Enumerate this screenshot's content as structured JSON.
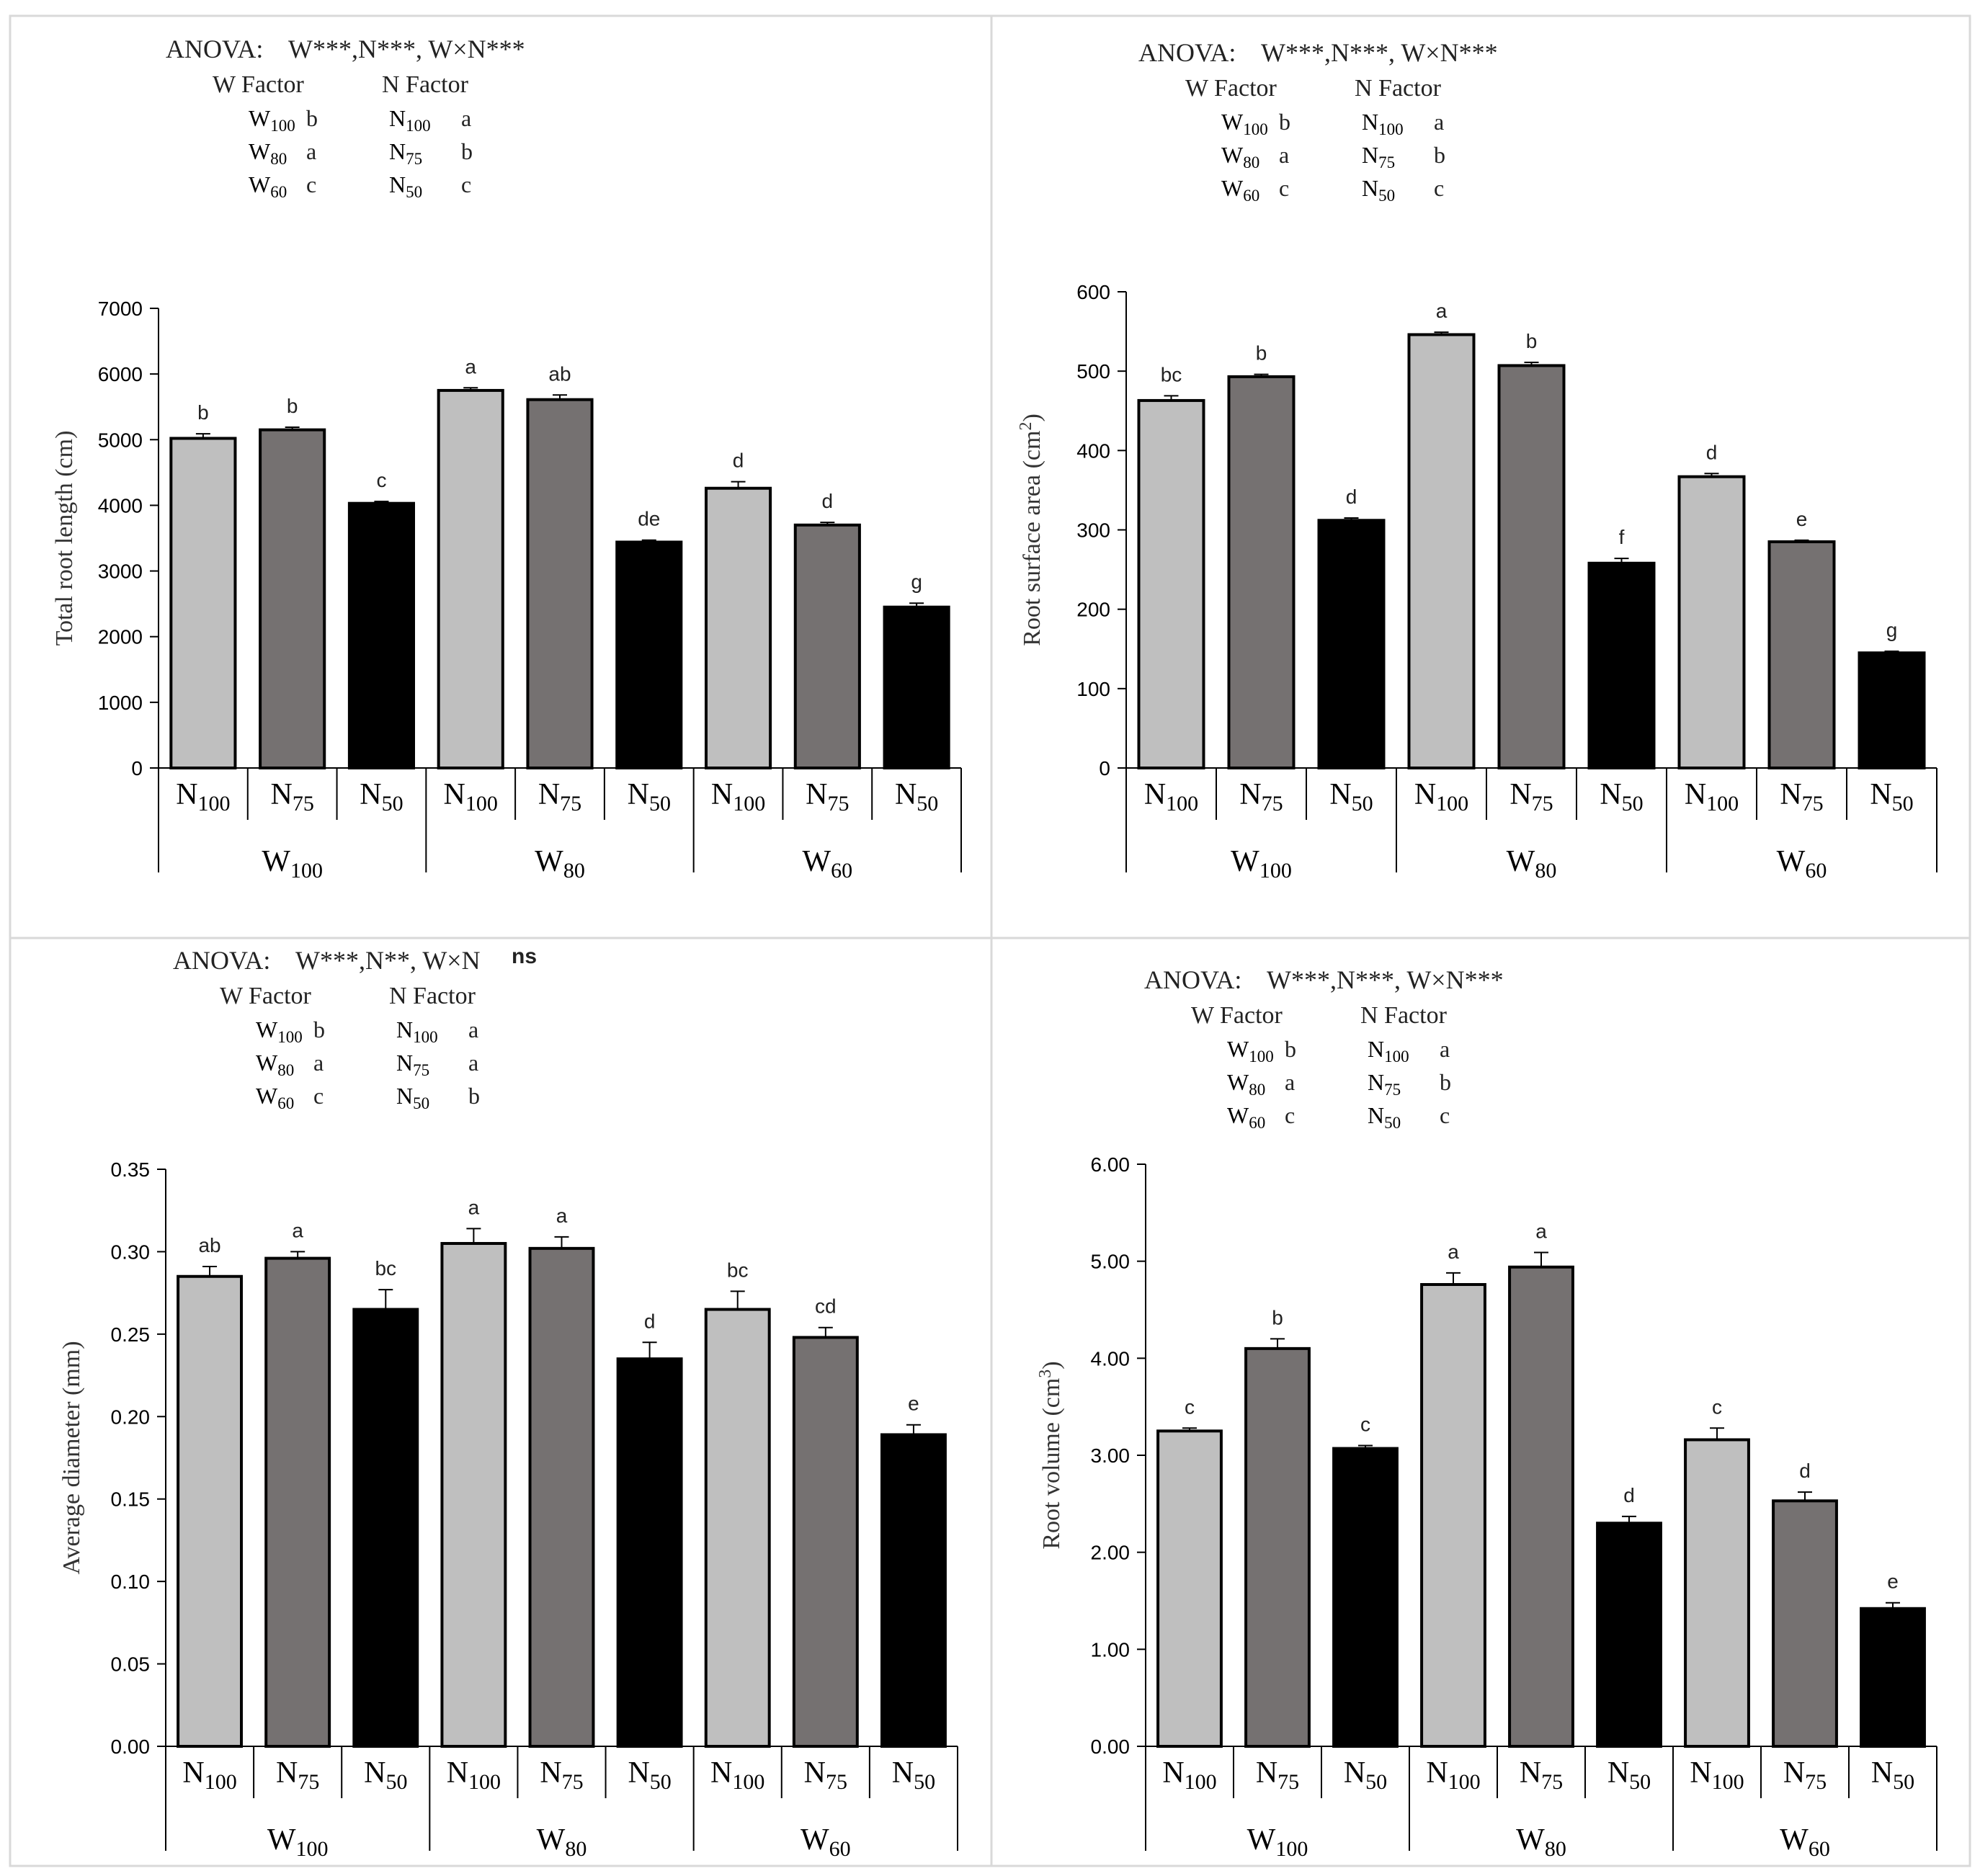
{
  "figure": {
    "panels": [
      "Total root length",
      "Root surface area",
      "Average diameter",
      "Root volume"
    ]
  },
  "colors": {
    "N100": "#bfbfbf",
    "N75": "#757171",
    "N50": "#000000",
    "frame": "#d9d9d9",
    "axis": "#000000"
  },
  "chart_data": [
    {
      "type": "bar",
      "title": "",
      "ylabel": "Total root length (cm)",
      "ylim": [
        0,
        7000
      ],
      "yticks": [
        "0",
        "1000",
        "2000",
        "3000",
        "4000",
        "5000",
        "6000",
        "7000"
      ],
      "n_levels": [
        "N100",
        "N75",
        "N50"
      ],
      "w_levels": [
        "W100",
        "W80",
        "W60"
      ],
      "values": [
        5020,
        5150,
        4030,
        5750,
        5610,
        3440,
        4260,
        3700,
        2450
      ],
      "errors": [
        70,
        40,
        30,
        40,
        70,
        30,
        100,
        40,
        60
      ],
      "letters": [
        "b",
        "b",
        "c",
        "a",
        "ab",
        "de",
        "d",
        "d",
        "g"
      ],
      "anova": {
        "title": "ANOVA:",
        "effects": "W***,N***, W×N***",
        "sup": ""
      },
      "factor_headers": [
        "W Factor",
        "N Factor"
      ],
      "w_factor": [
        {
          "level": "W100",
          "letter": "b"
        },
        {
          "level": "W80",
          "letter": "a"
        },
        {
          "level": "W60",
          "letter": "c"
        }
      ],
      "n_factor": [
        {
          "level": "N100",
          "letter": "a"
        },
        {
          "level": "N75",
          "letter": "b"
        },
        {
          "level": "N50",
          "letter": "c"
        }
      ]
    },
    {
      "type": "bar",
      "title": "",
      "ylabel": "Root surface area (cm2)",
      "ylim": [
        0,
        600
      ],
      "yticks": [
        "0",
        "100",
        "200",
        "300",
        "400",
        "500",
        "600"
      ],
      "n_levels": [
        "N100",
        "N75",
        "N50"
      ],
      "w_levels": [
        "W100",
        "W80",
        "W60"
      ],
      "values": [
        463,
        493,
        312,
        546,
        507,
        258,
        367,
        285,
        145
      ],
      "errors": [
        6,
        3,
        3,
        3,
        4,
        6,
        4,
        2,
        2
      ],
      "letters": [
        "bc",
        "b",
        "d",
        "a",
        "b",
        "f",
        "d",
        "e",
        "g"
      ],
      "anova": {
        "title": "ANOVA:",
        "effects": "W***,N***, W×N***",
        "sup": ""
      },
      "factor_headers": [
        "W Factor",
        "N Factor"
      ],
      "w_factor": [
        {
          "level": "W100",
          "letter": "b"
        },
        {
          "level": "W80",
          "letter": "a"
        },
        {
          "level": "W60",
          "letter": "c"
        }
      ],
      "n_factor": [
        {
          "level": "N100",
          "letter": "a"
        },
        {
          "level": "N75",
          "letter": "b"
        },
        {
          "level": "N50",
          "letter": "c"
        }
      ]
    },
    {
      "type": "bar",
      "title": "",
      "ylabel": "Average diameter (mm)",
      "ylim": [
        0,
        0.35
      ],
      "yticks": [
        "0.00",
        "0.05",
        "0.10",
        "0.15",
        "0.20",
        "0.25",
        "0.30",
        "0.35"
      ],
      "n_levels": [
        "N100",
        "N75",
        "N50"
      ],
      "w_levels": [
        "W100",
        "W80",
        "W60"
      ],
      "values": [
        0.285,
        0.296,
        0.265,
        0.305,
        0.302,
        0.235,
        0.265,
        0.248,
        0.189
      ],
      "errors": [
        0.006,
        0.004,
        0.012,
        0.009,
        0.007,
        0.01,
        0.011,
        0.006,
        0.006
      ],
      "letters": [
        "ab",
        "a",
        "bc",
        "a",
        "a",
        "d",
        "bc",
        "cd",
        "e"
      ],
      "anova": {
        "title": "ANOVA:",
        "effects": "W***,N**, W×N",
        "sup": "ns"
      },
      "factor_headers": [
        "W Factor",
        "N Factor"
      ],
      "w_factor": [
        {
          "level": "W100",
          "letter": "b"
        },
        {
          "level": "W80",
          "letter": "a"
        },
        {
          "level": "W60",
          "letter": "c"
        }
      ],
      "n_factor": [
        {
          "level": "N100",
          "letter": "a"
        },
        {
          "level": "N75",
          "letter": "a"
        },
        {
          "level": "N50",
          "letter": "b"
        }
      ]
    },
    {
      "type": "bar",
      "title": "",
      "ylabel": "Root volume (cm3)",
      "ylim": [
        0,
        6
      ],
      "yticks": [
        "0.00",
        "1.00",
        "2.00",
        "3.00",
        "4.00",
        "5.00",
        "6.00"
      ],
      "n_levels": [
        "N100",
        "N75",
        "N50"
      ],
      "w_levels": [
        "W100",
        "W80",
        "W60"
      ],
      "values": [
        3.25,
        4.1,
        3.07,
        4.76,
        4.94,
        2.3,
        3.16,
        2.53,
        1.42
      ],
      "errors": [
        0.03,
        0.1,
        0.03,
        0.12,
        0.15,
        0.07,
        0.12,
        0.09,
        0.06
      ],
      "letters": [
        "c",
        "b",
        "c",
        "a",
        "a",
        "d",
        "c",
        "d",
        "e"
      ],
      "anova": {
        "title": "ANOVA:",
        "effects": "W***,N***, W×N***",
        "sup": ""
      },
      "factor_headers": [
        "W Factor",
        "N Factor"
      ],
      "w_factor": [
        {
          "level": "W100",
          "letter": "b"
        },
        {
          "level": "W80",
          "letter": "a"
        },
        {
          "level": "W60",
          "letter": "c"
        }
      ],
      "n_factor": [
        {
          "level": "N100",
          "letter": "a"
        },
        {
          "level": "N75",
          "letter": "b"
        },
        {
          "level": "N50",
          "letter": "c"
        }
      ]
    }
  ]
}
